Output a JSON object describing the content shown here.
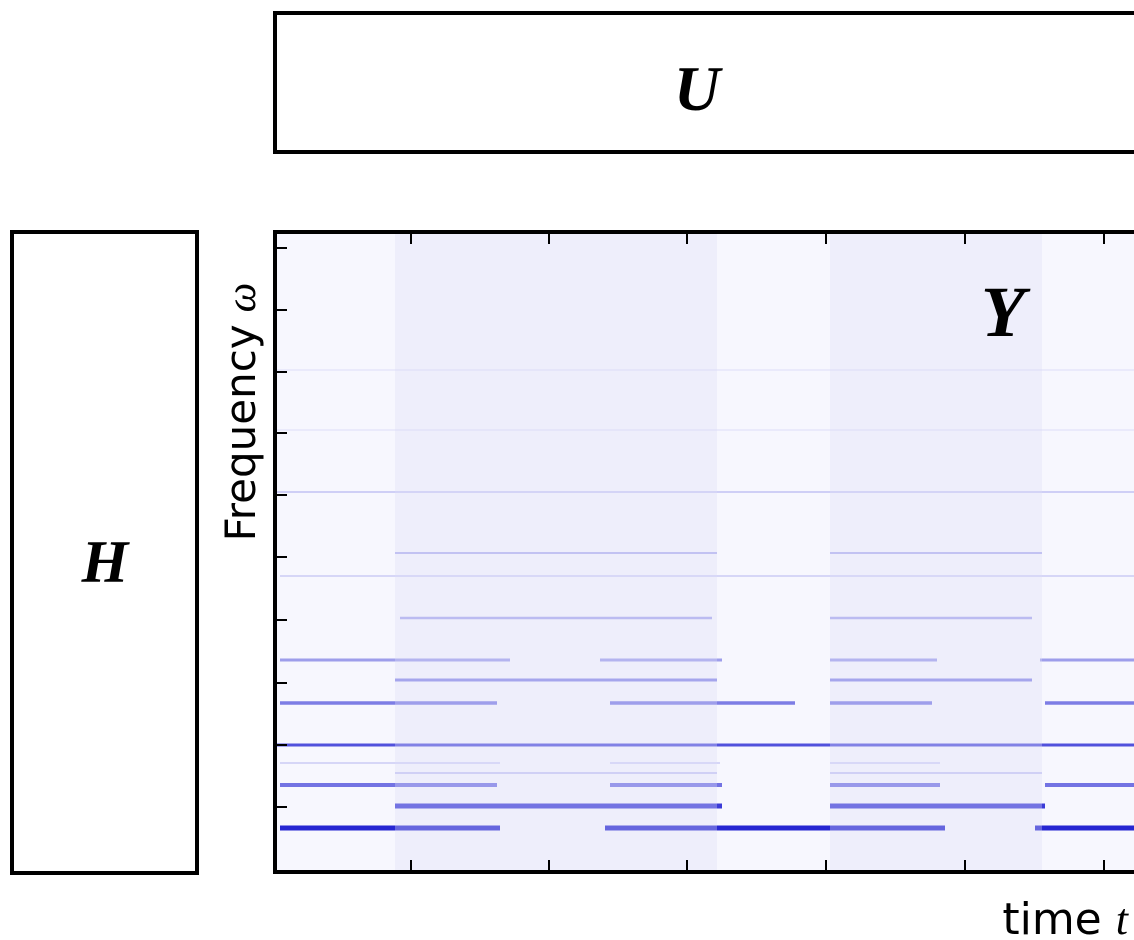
{
  "top_box": {
    "label": "U"
  },
  "left_box": {
    "label": "H"
  },
  "spectrogram": {
    "label": "Y",
    "y_axis": {
      "label": "Frequency",
      "symbol": "ω"
    },
    "x_axis": {
      "label": "time",
      "symbol": "t"
    }
  }
}
